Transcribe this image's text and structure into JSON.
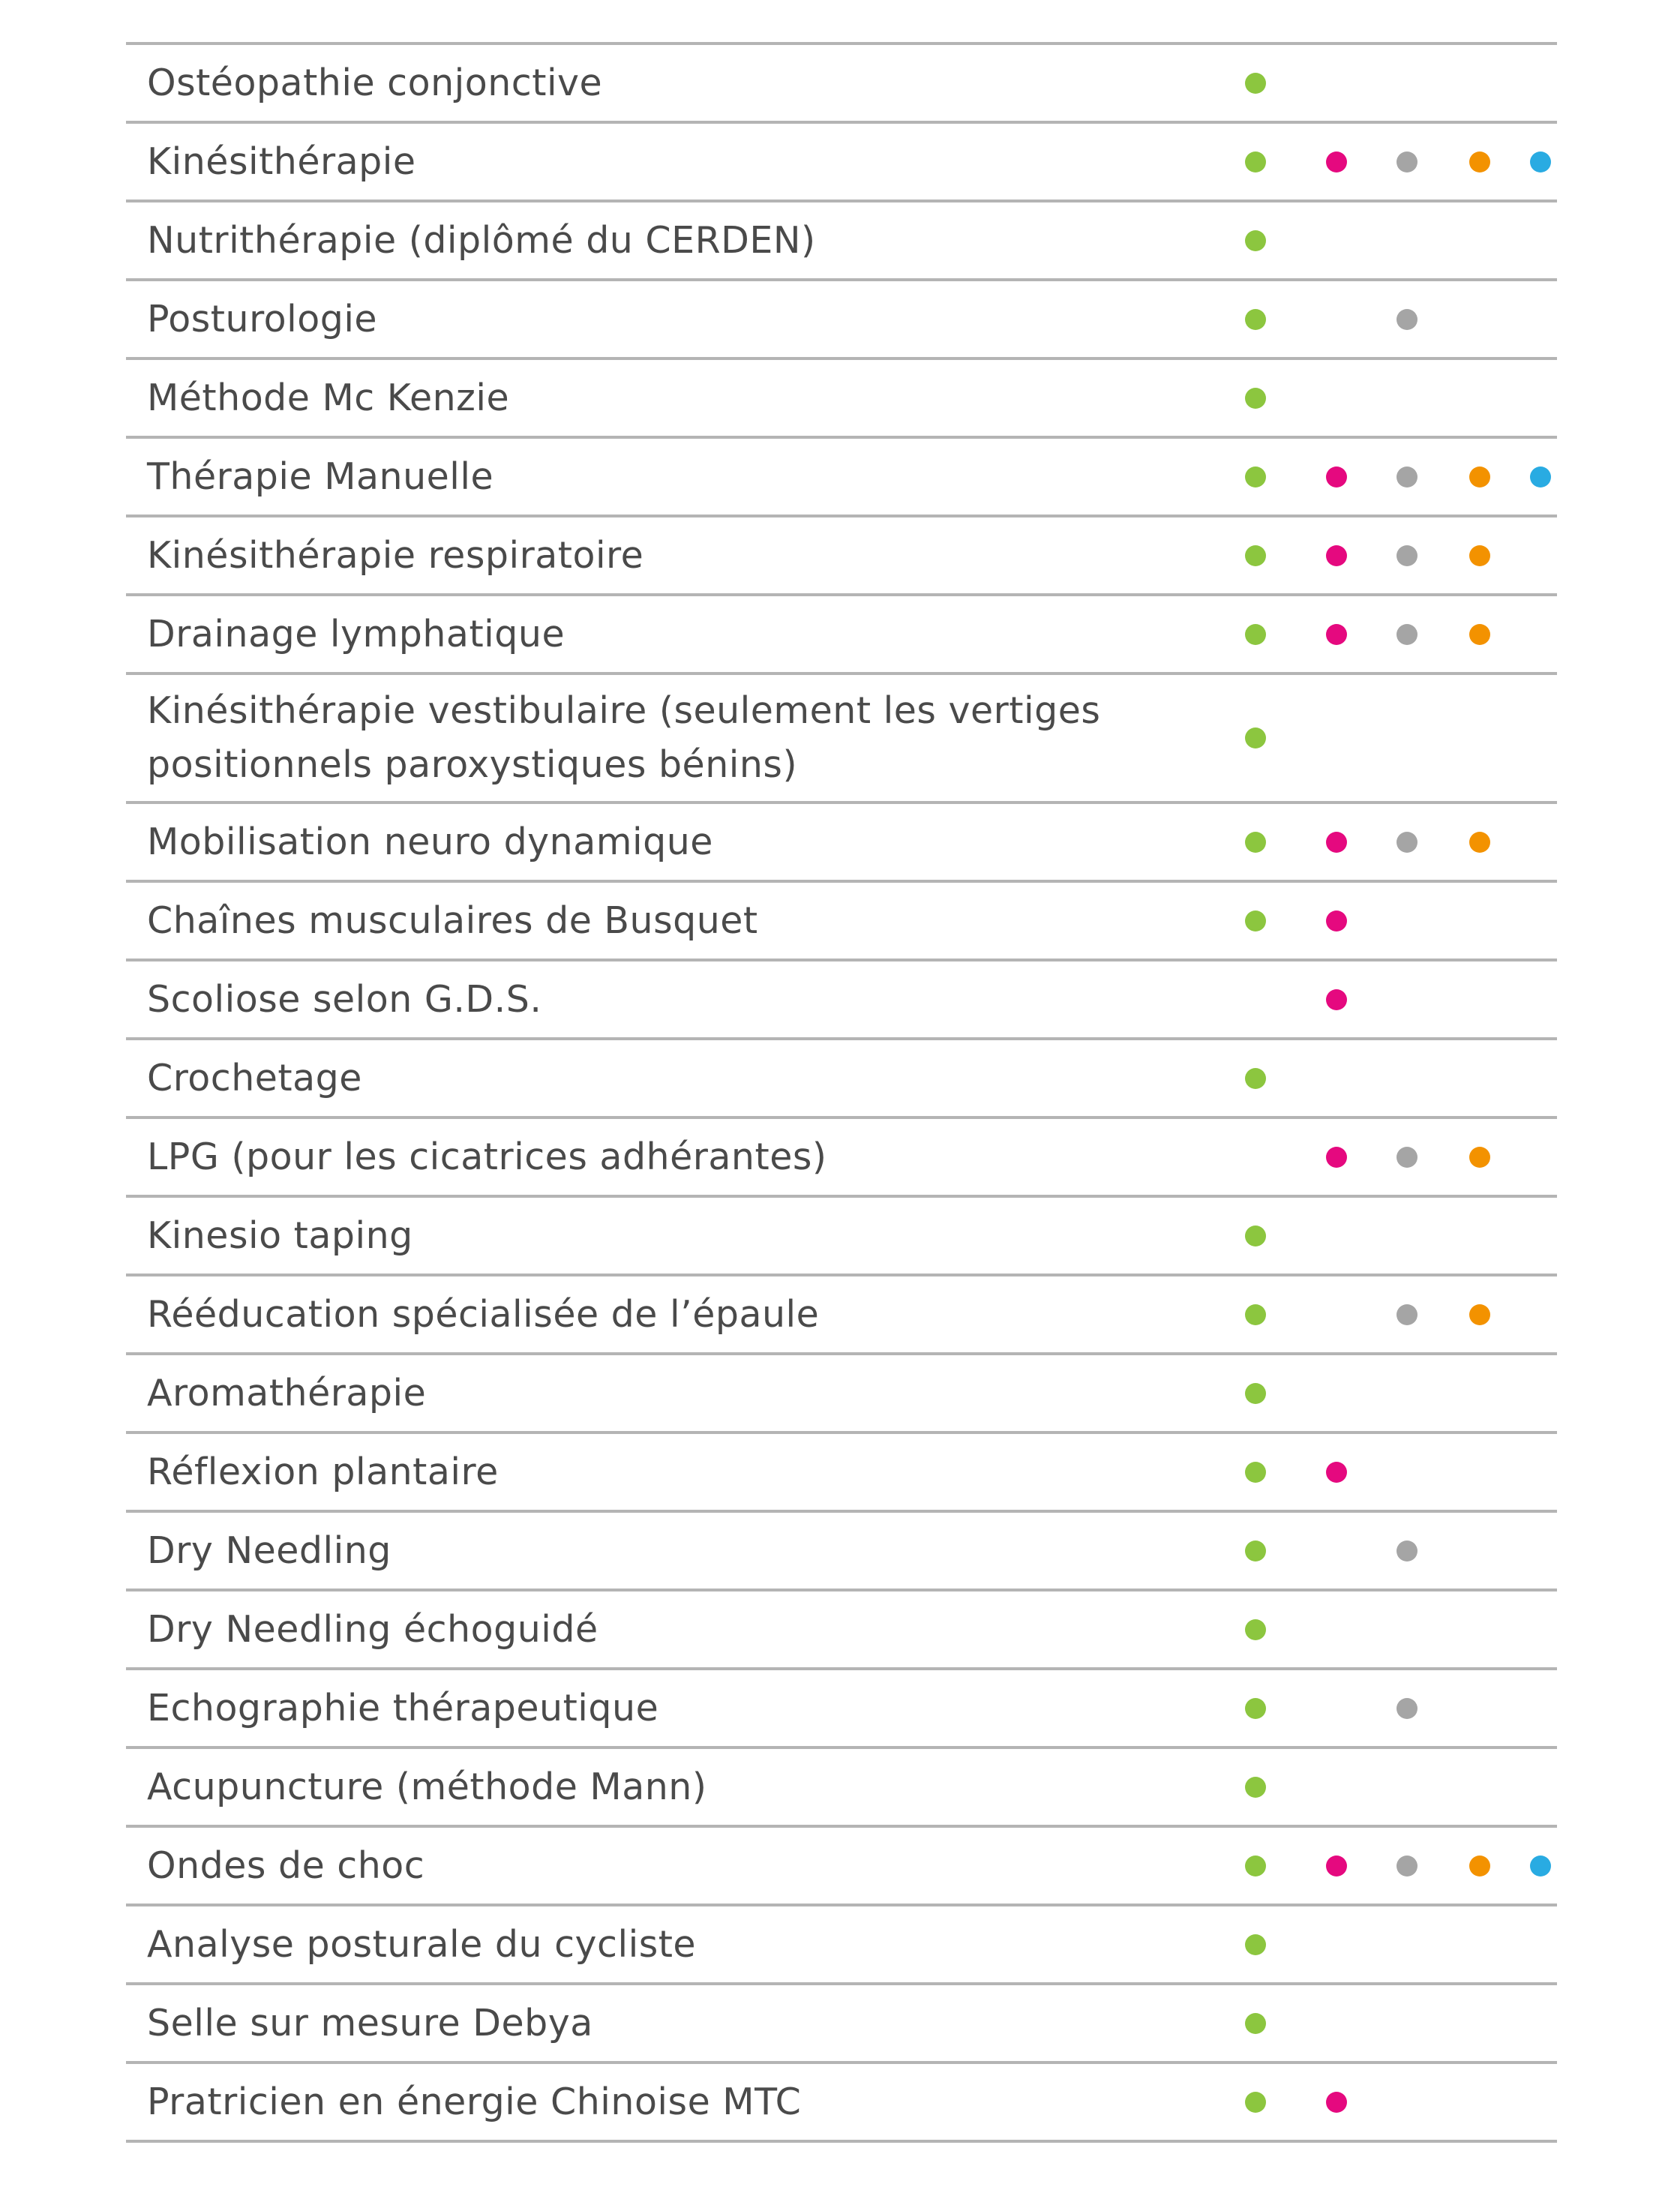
{
  "categories": [
    {
      "key": "c0",
      "color": "#8cc63f"
    },
    {
      "key": "c1",
      "color": "#e5097f"
    },
    {
      "key": "c2",
      "color": "#a5a5a5"
    },
    {
      "key": "c3",
      "color": "#f39200"
    },
    {
      "key": "c4",
      "color": "#29abe2"
    }
  ],
  "rows": [
    {
      "label": "Ostéopathie conjonctive",
      "marks": [
        1,
        0,
        0,
        0,
        0
      ]
    },
    {
      "label": "Kinésithérapie",
      "marks": [
        1,
        1,
        1,
        1,
        1
      ]
    },
    {
      "label": "Nutrithérapie (diplômé du CERDEN)",
      "marks": [
        1,
        0,
        0,
        0,
        0
      ]
    },
    {
      "label": "Posturologie",
      "marks": [
        1,
        0,
        1,
        0,
        0
      ]
    },
    {
      "label": "Méthode Mc Kenzie",
      "marks": [
        1,
        0,
        0,
        0,
        0
      ]
    },
    {
      "label": "Thérapie Manuelle",
      "marks": [
        1,
        1,
        1,
        1,
        1
      ]
    },
    {
      "label": "Kinésithérapie respiratoire",
      "marks": [
        1,
        1,
        1,
        1,
        0
      ]
    },
    {
      "label": "Drainage lymphatique",
      "marks": [
        1,
        1,
        1,
        1,
        0
      ]
    },
    {
      "label": "Kinésithérapie vestibulaire (seulement les vertiges positionnels paroxystiques bénins)",
      "marks": [
        1,
        0,
        0,
        0,
        0
      ],
      "tall": true
    },
    {
      "label": "Mobilisation neuro dynamique",
      "marks": [
        1,
        1,
        1,
        1,
        0
      ]
    },
    {
      "label": "Chaînes musculaires de Busquet",
      "marks": [
        1,
        1,
        0,
        0,
        0
      ]
    },
    {
      "label": "Scoliose selon G.D.S.",
      "marks": [
        0,
        1,
        0,
        0,
        0
      ]
    },
    {
      "label": "Crochetage",
      "marks": [
        1,
        0,
        0,
        0,
        0
      ]
    },
    {
      "label": "LPG (pour les cicatrices adhérantes)",
      "marks": [
        0,
        1,
        1,
        1,
        0
      ]
    },
    {
      "label": "Kinesio taping",
      "marks": [
        1,
        0,
        0,
        0,
        0
      ]
    },
    {
      "label": "Rééducation spécialisée de l’épaule",
      "marks": [
        1,
        0,
        1,
        1,
        0
      ]
    },
    {
      "label": "Aromathérapie",
      "marks": [
        1,
        0,
        0,
        0,
        0
      ]
    },
    {
      "label": "Réflexion plantaire",
      "marks": [
        1,
        1,
        0,
        0,
        0
      ]
    },
    {
      "label": "Dry Needling",
      "marks": [
        1,
        0,
        1,
        0,
        0
      ]
    },
    {
      "label": "Dry Needling échoguidé",
      "marks": [
        1,
        0,
        0,
        0,
        0
      ]
    },
    {
      "label": "Echographie thérapeutique",
      "marks": [
        1,
        0,
        1,
        0,
        0
      ]
    },
    {
      "label": "Acupuncture (méthode Mann)",
      "marks": [
        1,
        0,
        0,
        0,
        0
      ]
    },
    {
      "label": "Ondes de choc",
      "marks": [
        1,
        1,
        1,
        1,
        1
      ]
    },
    {
      "label": "Analyse posturale du cycliste",
      "marks": [
        1,
        0,
        0,
        0,
        0
      ]
    },
    {
      "label": "Selle sur mesure Debya",
      "marks": [
        1,
        0,
        0,
        0,
        0
      ]
    },
    {
      "label": "Pratricien en énergie Chinoise MTC",
      "marks": [
        1,
        1,
        0,
        0,
        0
      ]
    }
  ]
}
